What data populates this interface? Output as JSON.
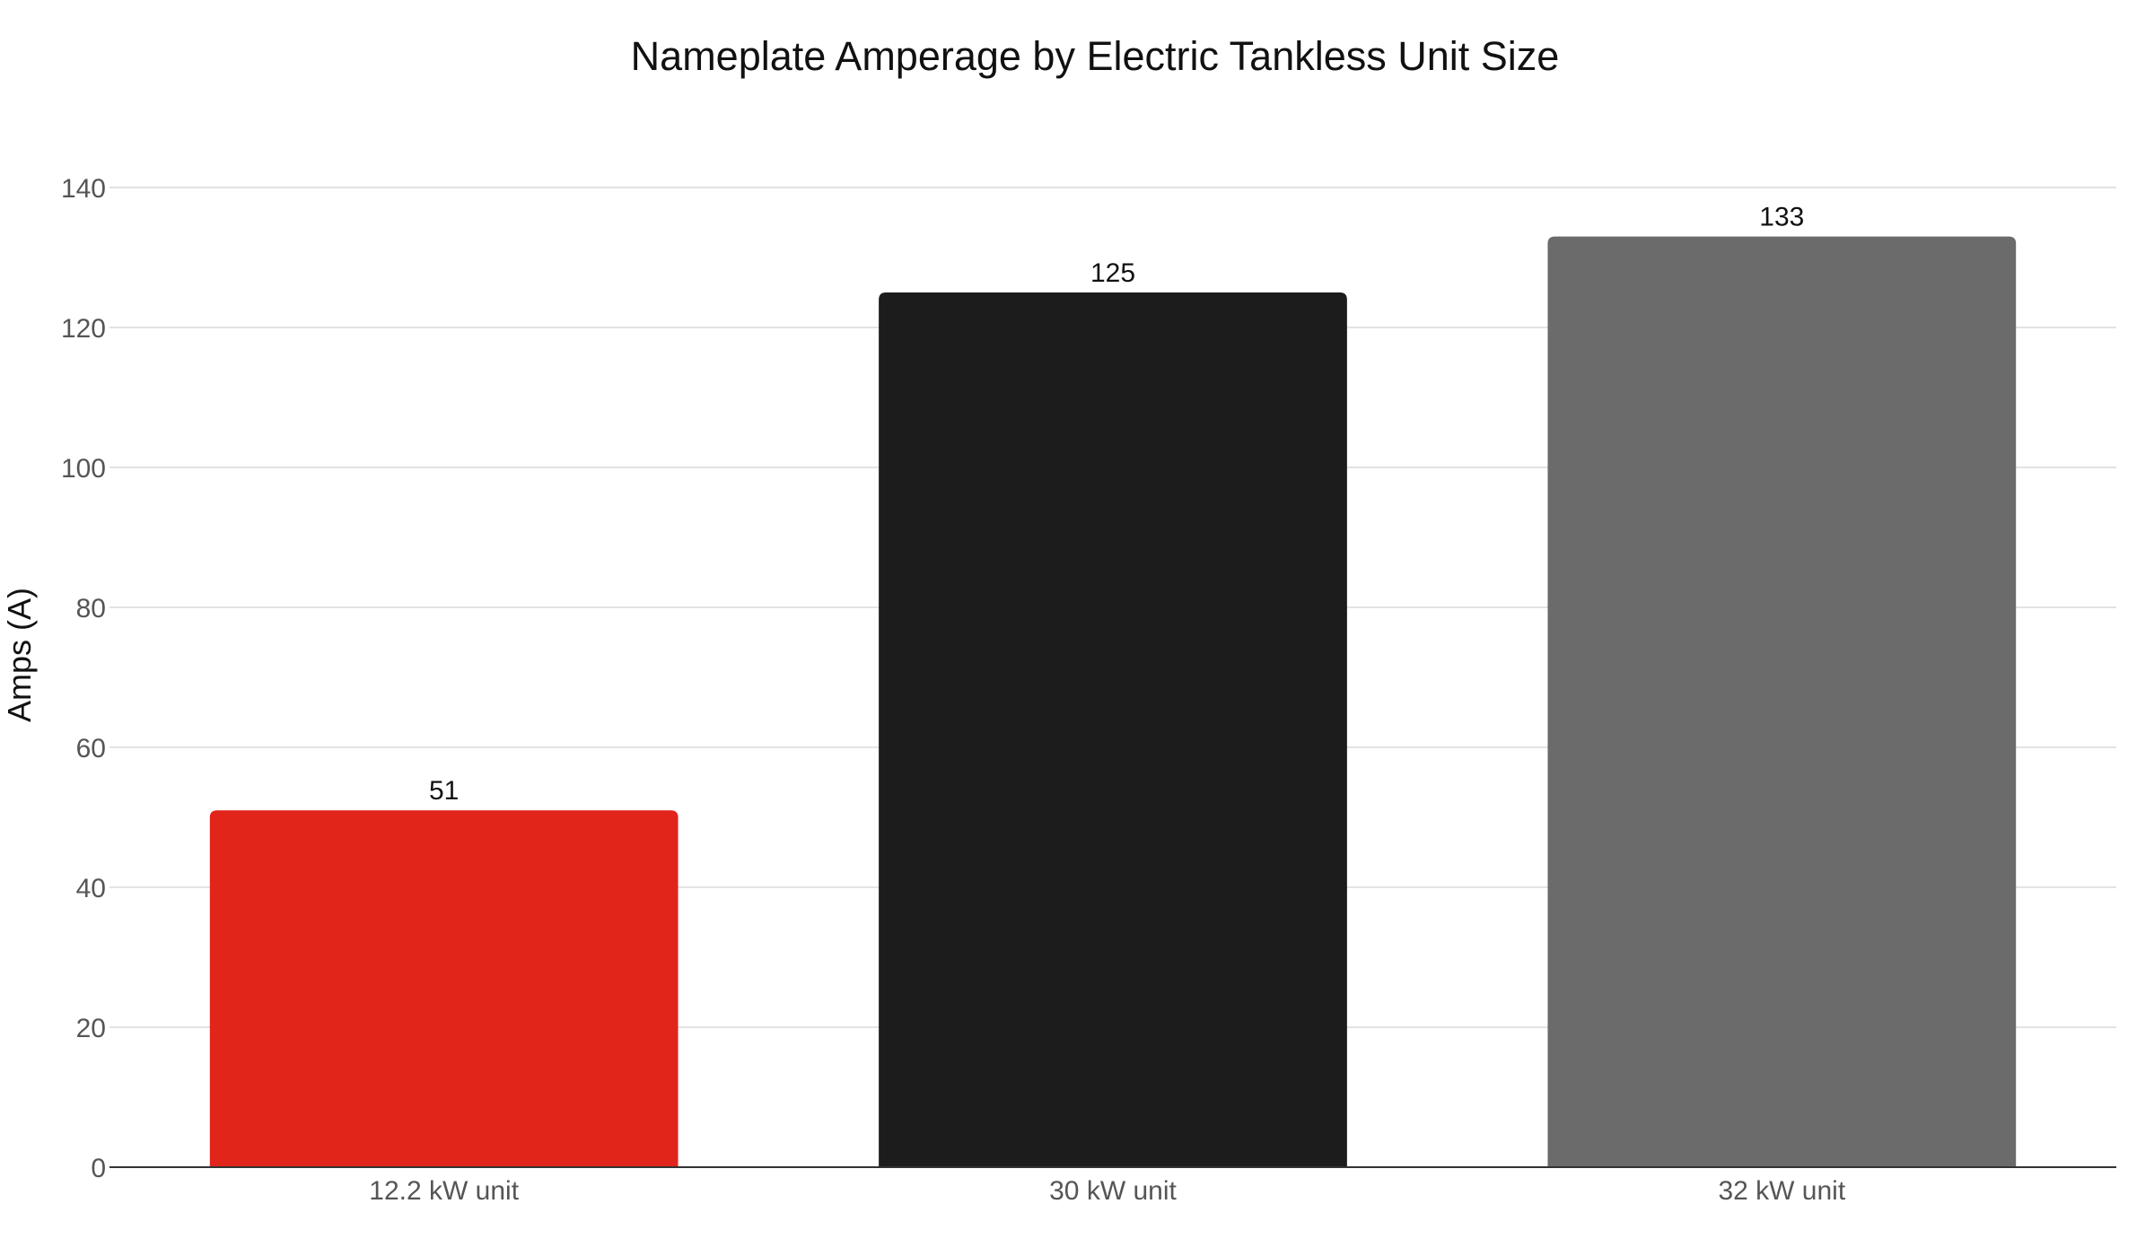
{
  "chart_data": {
    "type": "bar",
    "title": "Nameplate Amperage by Electric Tankless Unit Size",
    "xlabel": "",
    "ylabel": "Amps (A)",
    "categories": [
      "12.2 kW unit",
      "30 kW unit",
      "32 kW unit"
    ],
    "values": [
      51,
      125,
      133
    ],
    "colors": [
      "#e1251b",
      "#1c1c1c",
      "#6b6b6b"
    ],
    "ylim": [
      0,
      140
    ],
    "yticks": [
      0,
      20,
      40,
      60,
      80,
      100,
      120,
      140
    ],
    "grid": true,
    "legend": "none",
    "data_labels": true
  }
}
